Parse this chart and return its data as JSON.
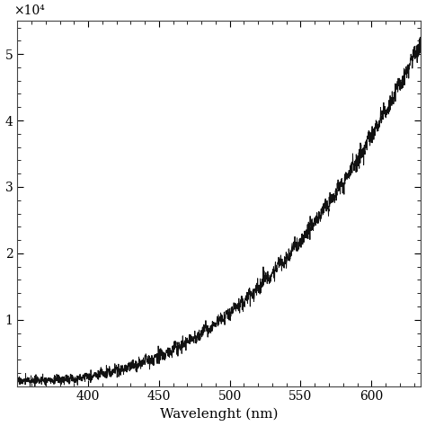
{
  "xlabel": "Wavelenght (nm)",
  "ylabel_exponent": "×10⁴",
  "xmin": 350,
  "xmax": 635,
  "ymin": 0,
  "ymax": 5.5,
  "xticks": [
    400,
    450,
    500,
    550,
    600
  ],
  "yticks": [
    1,
    2,
    3,
    4,
    5
  ],
  "line_color": "#111111",
  "line_width": 0.7,
  "bg_color": "#ffffff",
  "seed": 17,
  "n_points": 2000
}
